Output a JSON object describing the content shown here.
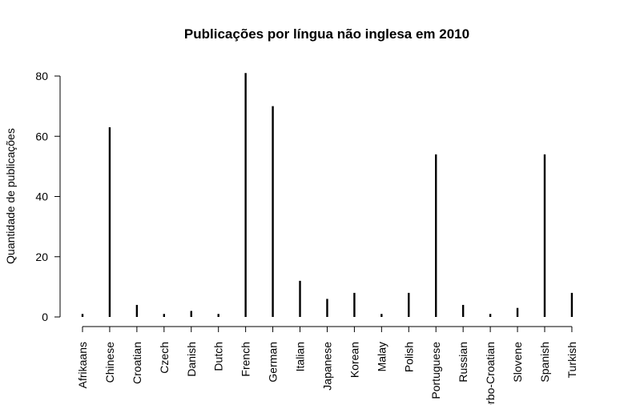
{
  "chart_data": {
    "type": "bar",
    "title": "Publicações por língua não inglesa em 2010",
    "xlabel": "",
    "ylabel": "Quantidade de publicações",
    "ylim": [
      0,
      80
    ],
    "yticks": [
      "0",
      "20",
      "40",
      "60",
      "80"
    ],
    "grid": false,
    "legend": "none",
    "categories": [
      "Afrikaans",
      "Chinese",
      "Croatian",
      "Czech",
      "Danish",
      "Dutch",
      "French",
      "German",
      "Italian",
      "Japanese",
      "Korean",
      "Malay",
      "Polish",
      "Portuguese",
      "Russian",
      "Serbo-Croatian",
      "Slovene",
      "Spanish",
      "Turkish"
    ],
    "values": [
      1,
      63,
      4,
      1,
      2,
      1,
      81,
      70,
      12,
      6,
      8,
      1,
      8,
      54,
      4,
      1,
      3,
      54,
      8
    ],
    "bar_color": "#000000"
  }
}
